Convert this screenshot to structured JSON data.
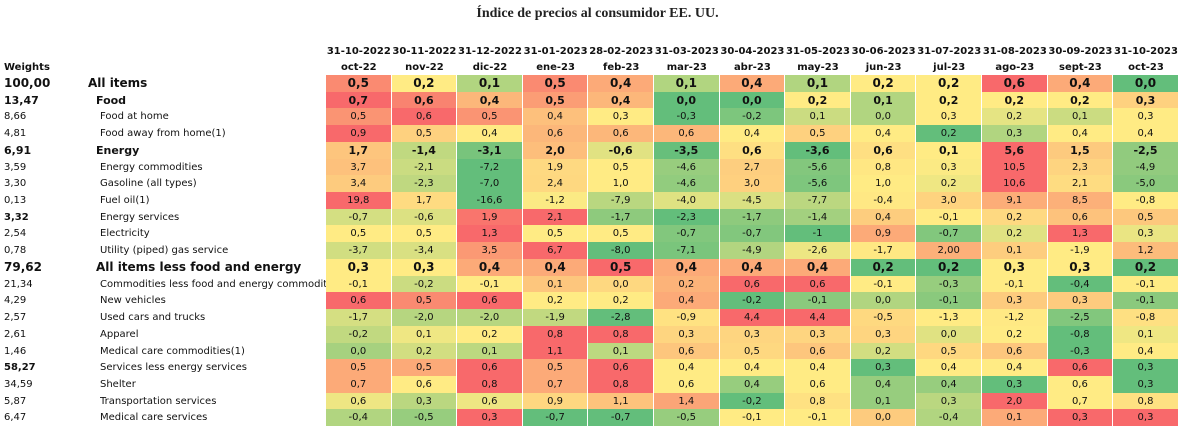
{
  "title": "Índice de precios al consumidor EE. UU.",
  "weights_header": "Weights",
  "chart_data": {
    "type": "heatmap",
    "title": "Índice de precios al consumidor EE. UU.",
    "columns": [
      {
        "date": "31-10-2022",
        "label": "oct-22"
      },
      {
        "date": "30-11-2022",
        "label": "nov-22"
      },
      {
        "date": "31-12-2022",
        "label": "dic-22"
      },
      {
        "date": "31-01-2023",
        "label": "ene-23"
      },
      {
        "date": "28-02-2023",
        "label": "feb-23"
      },
      {
        "date": "31-03-2023",
        "label": "mar-23"
      },
      {
        "date": "30-04-2023",
        "label": "abr-23"
      },
      {
        "date": "31-05-2023",
        "label": "may-23"
      },
      {
        "date": "30-06-2023",
        "label": "jun-23"
      },
      {
        "date": "31-07-2023",
        "label": "jul-23"
      },
      {
        "date": "31-08-2023",
        "label": "ago-23"
      },
      {
        "date": "30-09-2023",
        "label": "sept-23"
      },
      {
        "date": "31-10-2023",
        "label": "oct-23"
      }
    ],
    "rows": [
      {
        "weight": "100,00",
        "label": "All items",
        "level": 0,
        "style": "big",
        "values": [
          "0,5",
          "0,2",
          "0,1",
          "0,5",
          "0,4",
          "0,1",
          "0,4",
          "0,1",
          "0,2",
          "0,2",
          "0,6",
          "0,4",
          "0,0"
        ]
      },
      {
        "weight": "13,47",
        "label": "Food",
        "level": 1,
        "style": "bold",
        "values": [
          "0,7",
          "0,6",
          "0,4",
          "0,5",
          "0,4",
          "0,0",
          "0,0",
          "0,2",
          "0,1",
          "0,2",
          "0,2",
          "0,2",
          "0,3"
        ]
      },
      {
        "weight": "8,66",
        "label": "Food at home",
        "level": 2,
        "style": "normal",
        "values": [
          "0,5",
          "0,6",
          "0,5",
          "0,4",
          "0,3",
          "-0,3",
          "-0,2",
          "0,1",
          "0,0",
          "0,3",
          "0,2",
          "0,1",
          "0,3"
        ]
      },
      {
        "weight": "4,81",
        "label": "Food away from home(1)",
        "level": 2,
        "style": "normal",
        "values": [
          "0,9",
          "0,5",
          "0,4",
          "0,6",
          "0,6",
          "0,6",
          "0,4",
          "0,5",
          "0,4",
          "0,2",
          "0,3",
          "0,4",
          "0,4"
        ]
      },
      {
        "weight": "6,91",
        "label": "Energy",
        "level": 1,
        "style": "bold",
        "values": [
          "1,7",
          "-1,4",
          "-3,1",
          "2,0",
          "-0,6",
          "-3,5",
          "0,6",
          "-3,6",
          "0,6",
          "0,1",
          "5,6",
          "1,5",
          "-2,5"
        ]
      },
      {
        "weight": "3,59",
        "label": "Energy commodities",
        "level": 2,
        "style": "normal",
        "values": [
          "3,7",
          "-2,1",
          "-7,2",
          "1,9",
          "0,5",
          "-4,6",
          "2,7",
          "-5,6",
          "0,8",
          "0,3",
          "10,5",
          "2,3",
          "-4,9"
        ]
      },
      {
        "weight": "3,30",
        "label": "Gasoline (all types)",
        "level": 2,
        "style": "normal",
        "values": [
          "3,4",
          "-2,3",
          "-7,0",
          "2,4",
          "1,0",
          "-4,6",
          "3,0",
          "-5,6",
          "1,0",
          "0,2",
          "10,6",
          "2,1",
          "-5,0"
        ]
      },
      {
        "weight": "0,13",
        "label": "Fuel oil(1)",
        "level": 2,
        "style": "normal",
        "values": [
          "19,8",
          "1,7",
          "-16,6",
          "-1,2",
          "-7,9",
          "-4,0",
          "-4,5",
          "-7,7",
          "-0,4",
          "3,0",
          "9,1",
          "8,5",
          "-0,8"
        ]
      },
      {
        "weight": "3,32",
        "label": "Energy services",
        "level": 2,
        "style": "semibold",
        "values": [
          "-0,7",
          "-0,6",
          "1,9",
          "2,1",
          "-1,7",
          "-2,3",
          "-1,7",
          "-1,4",
          "0,4",
          "-0,1",
          "0,2",
          "0,6",
          "0,5"
        ]
      },
      {
        "weight": "2,54",
        "label": "Electricity",
        "level": 2,
        "style": "normal",
        "values": [
          "0,5",
          "0,5",
          "1,3",
          "0,5",
          "0,5",
          "-0,7",
          "-0,7",
          "-1",
          "0,9",
          "-0,7",
          "0,2",
          "1,3",
          "0,3"
        ]
      },
      {
        "weight": "0,78",
        "label": "Utility (piped) gas service",
        "level": 2,
        "style": "normal",
        "values": [
          "-3,7",
          "-3,4",
          "3,5",
          "6,7",
          "-8,0",
          "-7,1",
          "-4,9",
          "-2,6",
          "-1,7",
          "2,00",
          "0,1",
          "-1,9",
          "1,2"
        ]
      },
      {
        "weight": "79,62",
        "label": "All items less food and energy",
        "level": 1,
        "style": "big",
        "values": [
          "0,3",
          "0,3",
          "0,4",
          "0,4",
          "0,5",
          "0,4",
          "0,4",
          "0,4",
          "0,2",
          "0,2",
          "0,3",
          "0,3",
          "0,2"
        ]
      },
      {
        "weight": "21,34",
        "label": "Commodities less food and energy commodities",
        "level": 2,
        "style": "normal",
        "values": [
          "-0,1",
          "-0,2",
          "-0,1",
          "0,1",
          "0,0",
          "0,2",
          "0,6",
          "0,6",
          "-0,1",
          "-0,3",
          "-0,1",
          "-0,4",
          "-0,1"
        ]
      },
      {
        "weight": "4,29",
        "label": "New vehicles",
        "level": 2,
        "style": "normal",
        "values": [
          "0,6",
          "0,5",
          "0,6",
          "0,2",
          "0,2",
          "0,4",
          "-0,2",
          "-0,1",
          "0,0",
          "-0,1",
          "0,3",
          "0,3",
          "-0,1"
        ]
      },
      {
        "weight": "2,57",
        "label": "Used cars and trucks",
        "level": 2,
        "style": "normal",
        "values": [
          "-1,7",
          "-2,0",
          "-2,0",
          "-1,9",
          "-2,8",
          "-0,9",
          "4,4",
          "4,4",
          "-0,5",
          "-1,3",
          "-1,2",
          "-2,5",
          "-0,8"
        ]
      },
      {
        "weight": "2,61",
        "label": "Apparel",
        "level": 2,
        "style": "normal",
        "values": [
          "-0,2",
          "0,1",
          "0,2",
          "0,8",
          "0,8",
          "0,3",
          "0,3",
          "0,3",
          "0,3",
          "0,0",
          "0,2",
          "-0,8",
          "0,1"
        ]
      },
      {
        "weight": "1,46",
        "label": "Medical care commodities(1)",
        "level": 2,
        "style": "normal",
        "values": [
          "0,0",
          "0,2",
          "0,1",
          "1,1",
          "0,1",
          "0,6",
          "0,5",
          "0,6",
          "0,2",
          "0,5",
          "0,6",
          "-0,3",
          "0,4"
        ]
      },
      {
        "weight": "58,27",
        "label": "Services less energy services",
        "level": 2,
        "style": "semibold",
        "values": [
          "0,5",
          "0,5",
          "0,6",
          "0,5",
          "0,6",
          "0,4",
          "0,4",
          "0,4",
          "0,3",
          "0,4",
          "0,4",
          "0,6",
          "0,3"
        ]
      },
      {
        "weight": "34,59",
        "label": "Shelter",
        "level": 2,
        "style": "normal",
        "values": [
          "0,7",
          "0,6",
          "0,8",
          "0,7",
          "0,8",
          "0,6",
          "0,4",
          "0,6",
          "0,4",
          "0,4",
          "0,3",
          "0,6",
          "0,3"
        ]
      },
      {
        "weight": "5,87",
        "label": "Transportation services",
        "level": 2,
        "style": "normal",
        "values": [
          "0,6",
          "0,3",
          "0,6",
          "0,9",
          "1,1",
          "1,4",
          "-0,2",
          "0,8",
          "0,1",
          "0,3",
          "2,0",
          "0,7",
          "0,8"
        ]
      },
      {
        "weight": "6,47",
        "label": "Medical care services",
        "level": 2,
        "style": "normal",
        "values": [
          "-0,4",
          "-0,5",
          "0,3",
          "-0,7",
          "-0,7",
          "-0,5",
          "-0,1",
          "-0,1",
          "0,0",
          "-0,4",
          "0,1",
          "0,3",
          "0,3"
        ]
      }
    ],
    "color_scale": [
      "#63be7b",
      "#ffeb84",
      "#f8696b"
    ]
  }
}
